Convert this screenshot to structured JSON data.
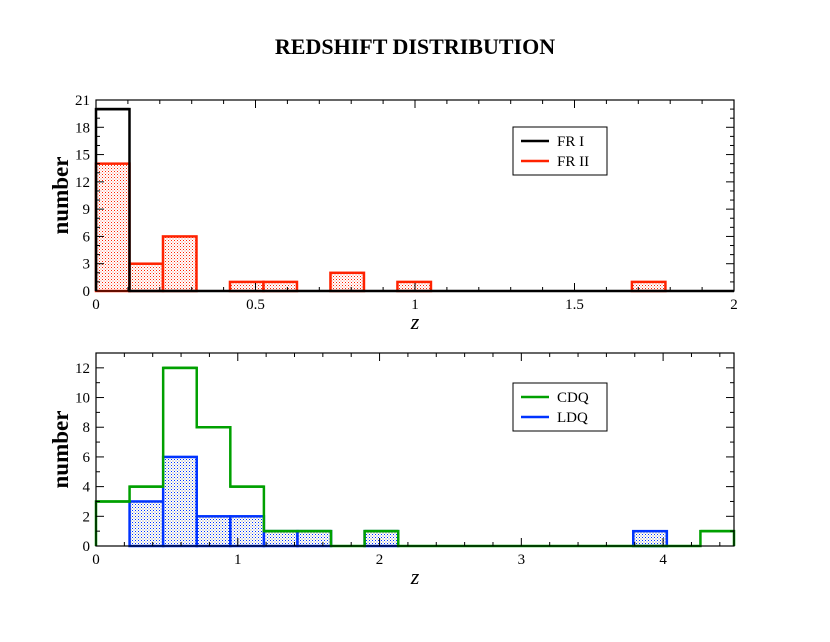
{
  "title": "REDSHIFT DISTRIBUTION",
  "chart_data": [
    {
      "type": "bar",
      "subtype": "histogram",
      "xlabel": "z",
      "ylabel": "number",
      "xlim": [
        0,
        2
      ],
      "ylim": [
        0,
        21
      ],
      "xticks": [
        0,
        0.5,
        1,
        1.5,
        2
      ],
      "xtick_labels": [
        "0",
        "0.5",
        "1",
        "1.5",
        "2"
      ],
      "yticks": [
        0,
        3,
        6,
        9,
        12,
        15,
        18,
        21
      ],
      "ytick_labels": [
        "0",
        "3",
        "6",
        "9",
        "12",
        "15",
        "18",
        "21"
      ],
      "bin_edges": [
        0,
        0.105,
        0.21,
        0.315,
        0.42,
        0.525,
        0.63,
        0.735,
        0.84,
        0.945,
        1.05,
        1.155,
        1.26,
        1.365,
        1.47,
        1.575,
        1.68,
        1.785,
        1.89,
        2.0
      ],
      "legend_position": "top-right",
      "series": [
        {
          "name": "FR I",
          "color": "#000000",
          "fill": "none",
          "values": [
            20,
            0,
            0,
            0,
            0,
            0,
            0,
            0,
            0,
            0,
            0,
            0,
            0,
            0,
            0,
            0,
            0,
            0,
            0
          ]
        },
        {
          "name": "FR II",
          "color": "#ff2200",
          "fill": "hatched",
          "values": [
            14,
            3,
            6,
            0,
            1,
            1,
            0,
            2,
            0,
            1,
            0,
            0,
            0,
            0,
            0,
            0,
            1,
            0,
            0
          ]
        }
      ]
    },
    {
      "type": "bar",
      "subtype": "histogram",
      "xlabel": "z",
      "ylabel": "number",
      "xlim": [
        0,
        4.5
      ],
      "ylim": [
        0,
        13
      ],
      "xticks": [
        0,
        1,
        2,
        3,
        4
      ],
      "xtick_labels": [
        "0",
        "1",
        "2",
        "3",
        "4"
      ],
      "yticks": [
        0,
        2,
        4,
        6,
        8,
        10,
        12
      ],
      "ytick_labels": [
        "0",
        "2",
        "4",
        "6",
        "8",
        "10",
        "12"
      ],
      "bin_edges": [
        0,
        0.2368,
        0.4737,
        0.7105,
        0.9474,
        1.1842,
        1.4211,
        1.6579,
        1.8947,
        2.1316,
        2.3684,
        2.6053,
        2.8421,
        3.0789,
        3.3158,
        3.5526,
        3.7895,
        4.0263,
        4.2632,
        4.5
      ],
      "legend_position": "top-right",
      "series": [
        {
          "name": "CDQ",
          "color": "#00a000",
          "fill": "none",
          "values": [
            3,
            4,
            12,
            8,
            4,
            1,
            1,
            0,
            1,
            0,
            0,
            0,
            0,
            0,
            0,
            0,
            0,
            0,
            1
          ]
        },
        {
          "name": "LDQ",
          "color": "#0033ff",
          "fill": "hatched",
          "values": [
            0,
            3,
            6,
            2,
            2,
            1,
            1,
            0,
            1,
            0,
            0,
            0,
            0,
            0,
            0,
            0,
            1,
            0,
            0
          ]
        }
      ]
    }
  ]
}
